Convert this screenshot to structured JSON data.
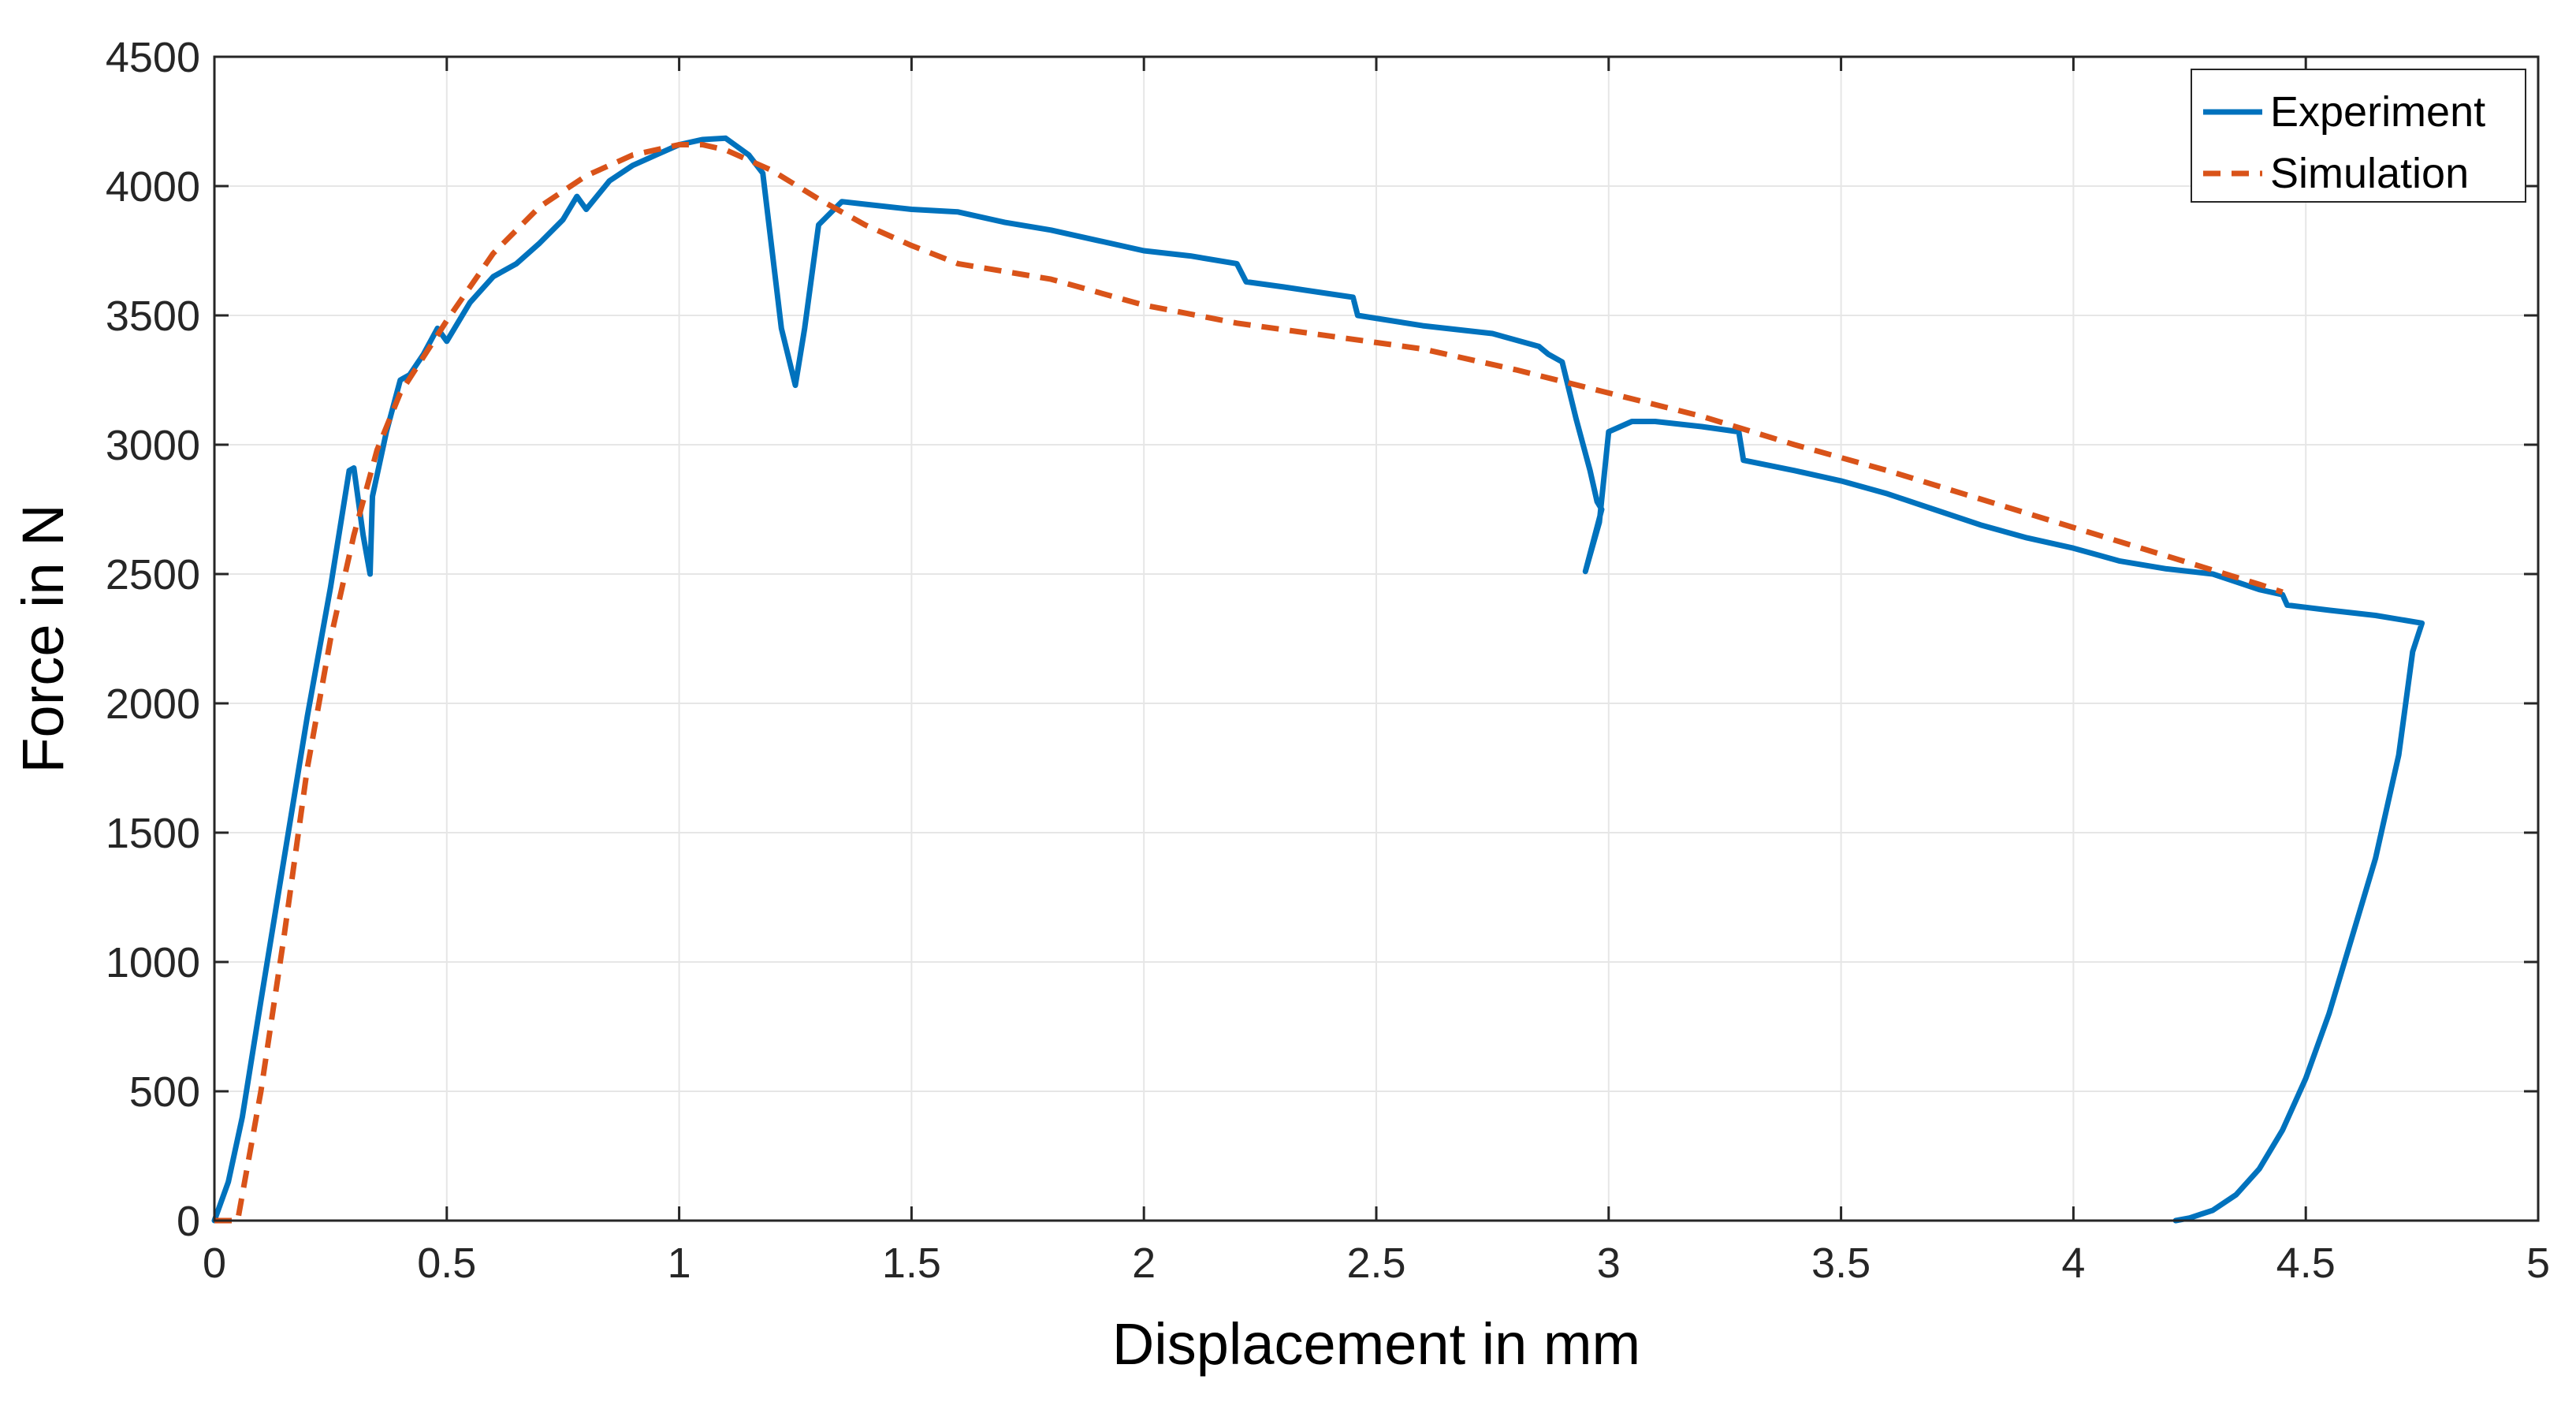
{
  "chart_data": {
    "type": "line",
    "title": "",
    "xlabel": "Displacement in mm",
    "ylabel": "Force in N",
    "xlim": [
      0,
      5
    ],
    "ylim": [
      0,
      4500
    ],
    "xticks": [
      "0",
      "0.5",
      "1",
      "1.5",
      "2",
      "2.5",
      "3",
      "3.5",
      "4",
      "4.5",
      "5"
    ],
    "yticks": [
      "0",
      "500",
      "1000",
      "1500",
      "2000",
      "2500",
      "3000",
      "3500",
      "4000",
      "4500"
    ],
    "grid": true,
    "legend_position": "top-right",
    "series": [
      {
        "name": "Experiment",
        "color": "#0072BD",
        "style": "solid",
        "points": [
          [
            0,
            0
          ],
          [
            0.03,
            150
          ],
          [
            0.06,
            400
          ],
          [
            0.1,
            850
          ],
          [
            0.15,
            1400
          ],
          [
            0.2,
            1950
          ],
          [
            0.25,
            2450
          ],
          [
            0.29,
            2900
          ],
          [
            0.3,
            2910
          ],
          [
            0.32,
            2650
          ],
          [
            0.335,
            2500
          ],
          [
            0.34,
            2800
          ],
          [
            0.37,
            3050
          ],
          [
            0.4,
            3250
          ],
          [
            0.42,
            3270
          ],
          [
            0.45,
            3350
          ],
          [
            0.48,
            3450
          ],
          [
            0.5,
            3400
          ],
          [
            0.55,
            3550
          ],
          [
            0.6,
            3650
          ],
          [
            0.65,
            3700
          ],
          [
            0.7,
            3780
          ],
          [
            0.75,
            3870
          ],
          [
            0.78,
            3960
          ],
          [
            0.8,
            3910
          ],
          [
            0.85,
            4020
          ],
          [
            0.9,
            4080
          ],
          [
            0.95,
            4120
          ],
          [
            1.0,
            4160
          ],
          [
            1.05,
            4180
          ],
          [
            1.1,
            4185
          ],
          [
            1.15,
            4120
          ],
          [
            1.18,
            4050
          ],
          [
            1.2,
            3750
          ],
          [
            1.22,
            3450
          ],
          [
            1.25,
            3230
          ],
          [
            1.27,
            3450
          ],
          [
            1.3,
            3850
          ],
          [
            1.35,
            3940
          ],
          [
            1.4,
            3930
          ],
          [
            1.5,
            3910
          ],
          [
            1.6,
            3900
          ],
          [
            1.7,
            3860
          ],
          [
            1.8,
            3830
          ],
          [
            1.9,
            3790
          ],
          [
            2.0,
            3750
          ],
          [
            2.1,
            3730
          ],
          [
            2.2,
            3700
          ],
          [
            2.22,
            3630
          ],
          [
            2.3,
            3610
          ],
          [
            2.45,
            3570
          ],
          [
            2.46,
            3500
          ],
          [
            2.6,
            3460
          ],
          [
            2.75,
            3430
          ],
          [
            2.85,
            3380
          ],
          [
            2.87,
            3350
          ],
          [
            2.9,
            3320
          ],
          [
            2.93,
            3100
          ],
          [
            2.96,
            2900
          ],
          [
            2.975,
            2780
          ],
          [
            2.985,
            2750
          ],
          [
            2.95,
            2510
          ],
          [
            2.98,
            2700
          ],
          [
            3.0,
            3050
          ],
          [
            3.05,
            3090
          ],
          [
            3.1,
            3090
          ],
          [
            3.2,
            3070
          ],
          [
            3.28,
            3050
          ],
          [
            3.29,
            2940
          ],
          [
            3.4,
            2900
          ],
          [
            3.5,
            2860
          ],
          [
            3.6,
            2810
          ],
          [
            3.7,
            2750
          ],
          [
            3.8,
            2690
          ],
          [
            3.9,
            2640
          ],
          [
            4.0,
            2600
          ],
          [
            4.1,
            2550
          ],
          [
            4.2,
            2520
          ],
          [
            4.3,
            2500
          ],
          [
            4.4,
            2440
          ],
          [
            4.45,
            2420
          ],
          [
            4.46,
            2380
          ],
          [
            4.55,
            2360
          ],
          [
            4.65,
            2340
          ],
          [
            4.75,
            2310
          ],
          [
            4.73,
            2200
          ],
          [
            4.7,
            1800
          ],
          [
            4.65,
            1400
          ],
          [
            4.6,
            1100
          ],
          [
            4.55,
            800
          ],
          [
            4.5,
            550
          ],
          [
            4.45,
            350
          ],
          [
            4.4,
            200
          ],
          [
            4.35,
            100
          ],
          [
            4.3,
            40
          ],
          [
            4.25,
            10
          ],
          [
            4.22,
            0
          ]
        ]
      },
      {
        "name": "Simulation",
        "color": "#D95319",
        "style": "dashed",
        "points": [
          [
            0,
            0
          ],
          [
            0.05,
            0
          ],
          [
            0.1,
            500
          ],
          [
            0.15,
            1100
          ],
          [
            0.2,
            1750
          ],
          [
            0.25,
            2250
          ],
          [
            0.3,
            2650
          ],
          [
            0.35,
            2980
          ],
          [
            0.4,
            3200
          ],
          [
            0.5,
            3480
          ],
          [
            0.6,
            3740
          ],
          [
            0.7,
            3920
          ],
          [
            0.8,
            4040
          ],
          [
            0.9,
            4120
          ],
          [
            1.0,
            4160
          ],
          [
            1.05,
            4160
          ],
          [
            1.1,
            4140
          ],
          [
            1.2,
            4060
          ],
          [
            1.3,
            3950
          ],
          [
            1.4,
            3850
          ],
          [
            1.5,
            3770
          ],
          [
            1.6,
            3700
          ],
          [
            1.8,
            3640
          ],
          [
            2.0,
            3540
          ],
          [
            2.2,
            3470
          ],
          [
            2.4,
            3420
          ],
          [
            2.6,
            3370
          ],
          [
            2.8,
            3290
          ],
          [
            3.0,
            3200
          ],
          [
            3.2,
            3110
          ],
          [
            3.4,
            3000
          ],
          [
            3.6,
            2900
          ],
          [
            3.8,
            2790
          ],
          [
            4.0,
            2680
          ],
          [
            4.2,
            2570
          ],
          [
            4.4,
            2460
          ],
          [
            4.45,
            2430
          ]
        ]
      }
    ]
  }
}
